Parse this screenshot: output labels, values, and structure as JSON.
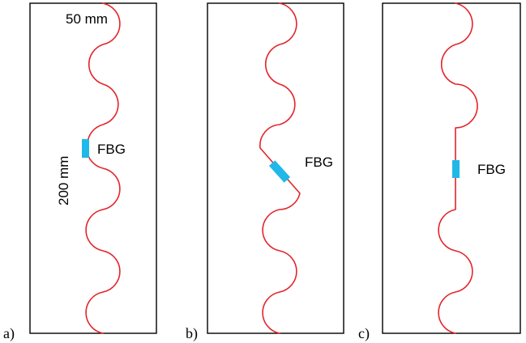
{
  "panels": [
    {
      "letter": "a)",
      "fbg_label": "FBG",
      "width_label": "50 mm",
      "height_label": "200 mm"
    },
    {
      "letter": "b)",
      "fbg_label": "FBG"
    },
    {
      "letter": "c)",
      "fbg_label": "FBG"
    }
  ],
  "colors": {
    "fiber": "#e3242b",
    "fbg": "#1fb8e8",
    "frame": "#000000"
  }
}
